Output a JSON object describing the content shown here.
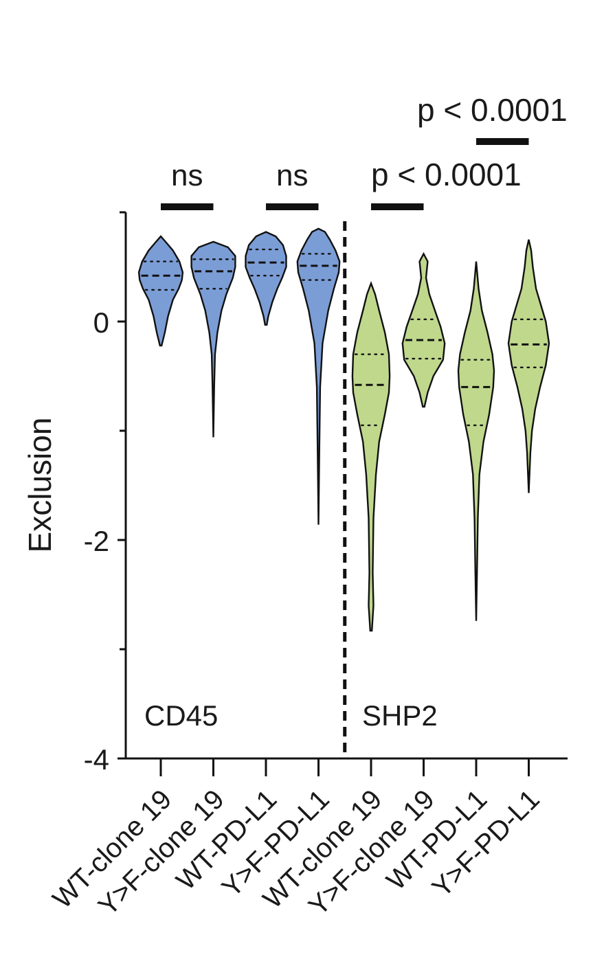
{
  "chart_data": {
    "type": "violin",
    "ylabel": "Exclusion",
    "ylim": [
      -4,
      1
    ],
    "yticks": [
      0,
      -2,
      -4
    ],
    "yticks_minor": [
      1,
      -1,
      -3
    ],
    "categories": [
      "WT-clone 19",
      "Y>F-clone 19",
      "WT-PD-L1",
      "Y>F-PD-L1",
      "WT-clone 19",
      "Y>F-clone 19",
      "WT-PD-L1",
      "Y>F-PD-L1"
    ],
    "groups": [
      {
        "label": "CD45",
        "color": "#7B9DD6",
        "members": [
          0,
          1,
          2,
          3
        ]
      },
      {
        "label": "SHP2",
        "color": "#BFD88C",
        "members": [
          4,
          5,
          6,
          7
        ]
      }
    ],
    "violins": [
      {
        "min": -0.22,
        "max": 0.78,
        "q1": 0.29,
        "median": 0.42,
        "q3": 0.55,
        "profile": [
          [
            -0.22,
            0.01
          ],
          [
            -0.1,
            0.05
          ],
          [
            0.05,
            0.09
          ],
          [
            0.2,
            0.15
          ],
          [
            0.3,
            0.22
          ],
          [
            0.38,
            0.26
          ],
          [
            0.45,
            0.27
          ],
          [
            0.55,
            0.23
          ],
          [
            0.65,
            0.15
          ],
          [
            0.72,
            0.07
          ],
          [
            0.78,
            0.0
          ]
        ]
      },
      {
        "min": -1.06,
        "max": 0.73,
        "q1": 0.3,
        "median": 0.46,
        "q3": 0.57,
        "profile": [
          [
            -1.06,
            0.0
          ],
          [
            -0.6,
            0.01
          ],
          [
            -0.3,
            0.02
          ],
          [
            -0.1,
            0.05
          ],
          [
            0.1,
            0.1
          ],
          [
            0.25,
            0.16
          ],
          [
            0.4,
            0.24
          ],
          [
            0.5,
            0.27
          ],
          [
            0.6,
            0.27
          ],
          [
            0.68,
            0.18
          ],
          [
            0.73,
            0.0
          ]
        ]
      },
      {
        "min": -0.03,
        "max": 0.82,
        "q1": 0.42,
        "median": 0.54,
        "q3": 0.66,
        "profile": [
          [
            -0.03,
            0.01
          ],
          [
            0.05,
            0.03
          ],
          [
            0.18,
            0.08
          ],
          [
            0.3,
            0.14
          ],
          [
            0.4,
            0.2
          ],
          [
            0.5,
            0.25
          ],
          [
            0.6,
            0.25
          ],
          [
            0.7,
            0.21
          ],
          [
            0.78,
            0.12
          ],
          [
            0.82,
            0.0
          ]
        ]
      },
      {
        "min": -1.86,
        "max": 0.85,
        "q1": 0.38,
        "median": 0.51,
        "q3": 0.62,
        "profile": [
          [
            -1.86,
            0.0
          ],
          [
            -1.2,
            0.01
          ],
          [
            -0.6,
            0.02
          ],
          [
            -0.2,
            0.05
          ],
          [
            0.1,
            0.12
          ],
          [
            0.3,
            0.19
          ],
          [
            0.45,
            0.25
          ],
          [
            0.55,
            0.26
          ],
          [
            0.65,
            0.21
          ],
          [
            0.75,
            0.14
          ],
          [
            0.82,
            0.08
          ],
          [
            0.85,
            0.0
          ]
        ]
      },
      {
        "min": -2.83,
        "max": 0.35,
        "q1": -0.95,
        "median": -0.58,
        "q3": -0.3,
        "profile": [
          [
            -2.83,
            0.01
          ],
          [
            -2.6,
            0.03
          ],
          [
            -2.3,
            0.02
          ],
          [
            -1.8,
            0.03
          ],
          [
            -1.4,
            0.06
          ],
          [
            -1.1,
            0.1
          ],
          [
            -0.85,
            0.17
          ],
          [
            -0.65,
            0.22
          ],
          [
            -0.5,
            0.23
          ],
          [
            -0.3,
            0.22
          ],
          [
            -0.1,
            0.17
          ],
          [
            0.1,
            0.1
          ],
          [
            0.25,
            0.05
          ],
          [
            0.35,
            0.0
          ]
        ]
      },
      {
        "min": -0.78,
        "max": 0.62,
        "q1": -0.34,
        "median": -0.17,
        "q3": 0.02,
        "profile": [
          [
            -0.78,
            0.01
          ],
          [
            -0.65,
            0.05
          ],
          [
            -0.5,
            0.12
          ],
          [
            -0.35,
            0.24
          ],
          [
            -0.2,
            0.26
          ],
          [
            -0.05,
            0.21
          ],
          [
            0.1,
            0.14
          ],
          [
            0.25,
            0.07
          ],
          [
            0.4,
            0.03
          ],
          [
            0.55,
            0.05
          ],
          [
            0.62,
            0.0
          ]
        ]
      },
      {
        "min": -2.74,
        "max": 0.55,
        "q1": -0.95,
        "median": -0.6,
        "q3": -0.35,
        "profile": [
          [
            -2.74,
            0.0
          ],
          [
            -2.3,
            0.01
          ],
          [
            -1.8,
            0.02
          ],
          [
            -1.4,
            0.04
          ],
          [
            -1.1,
            0.09
          ],
          [
            -0.85,
            0.16
          ],
          [
            -0.6,
            0.21
          ],
          [
            -0.45,
            0.22
          ],
          [
            -0.3,
            0.2
          ],
          [
            -0.1,
            0.14
          ],
          [
            0.1,
            0.07
          ],
          [
            0.3,
            0.03
          ],
          [
            0.55,
            0.0
          ]
        ]
      },
      {
        "min": -1.57,
        "max": 0.75,
        "q1": -0.42,
        "median": -0.21,
        "q3": 0.02,
        "profile": [
          [
            -1.57,
            0.0
          ],
          [
            -1.2,
            0.02
          ],
          [
            -1.0,
            0.04
          ],
          [
            -0.8,
            0.08
          ],
          [
            -0.6,
            0.14
          ],
          [
            -0.4,
            0.21
          ],
          [
            -0.2,
            0.25
          ],
          [
            0.0,
            0.21
          ],
          [
            0.15,
            0.15
          ],
          [
            0.3,
            0.09
          ],
          [
            0.5,
            0.05
          ],
          [
            0.65,
            0.03
          ],
          [
            0.75,
            0.0
          ]
        ]
      }
    ],
    "comparisons": [
      {
        "between": [
          0,
          1
        ],
        "label": "ns",
        "level": 0
      },
      {
        "between": [
          2,
          3
        ],
        "label": "ns",
        "level": 0
      },
      {
        "between": [
          4,
          5
        ],
        "label": "p < 0.0001",
        "level": 0
      },
      {
        "between": [
          6,
          7
        ],
        "label": "p < 0.0001",
        "level": 1
      }
    ]
  }
}
